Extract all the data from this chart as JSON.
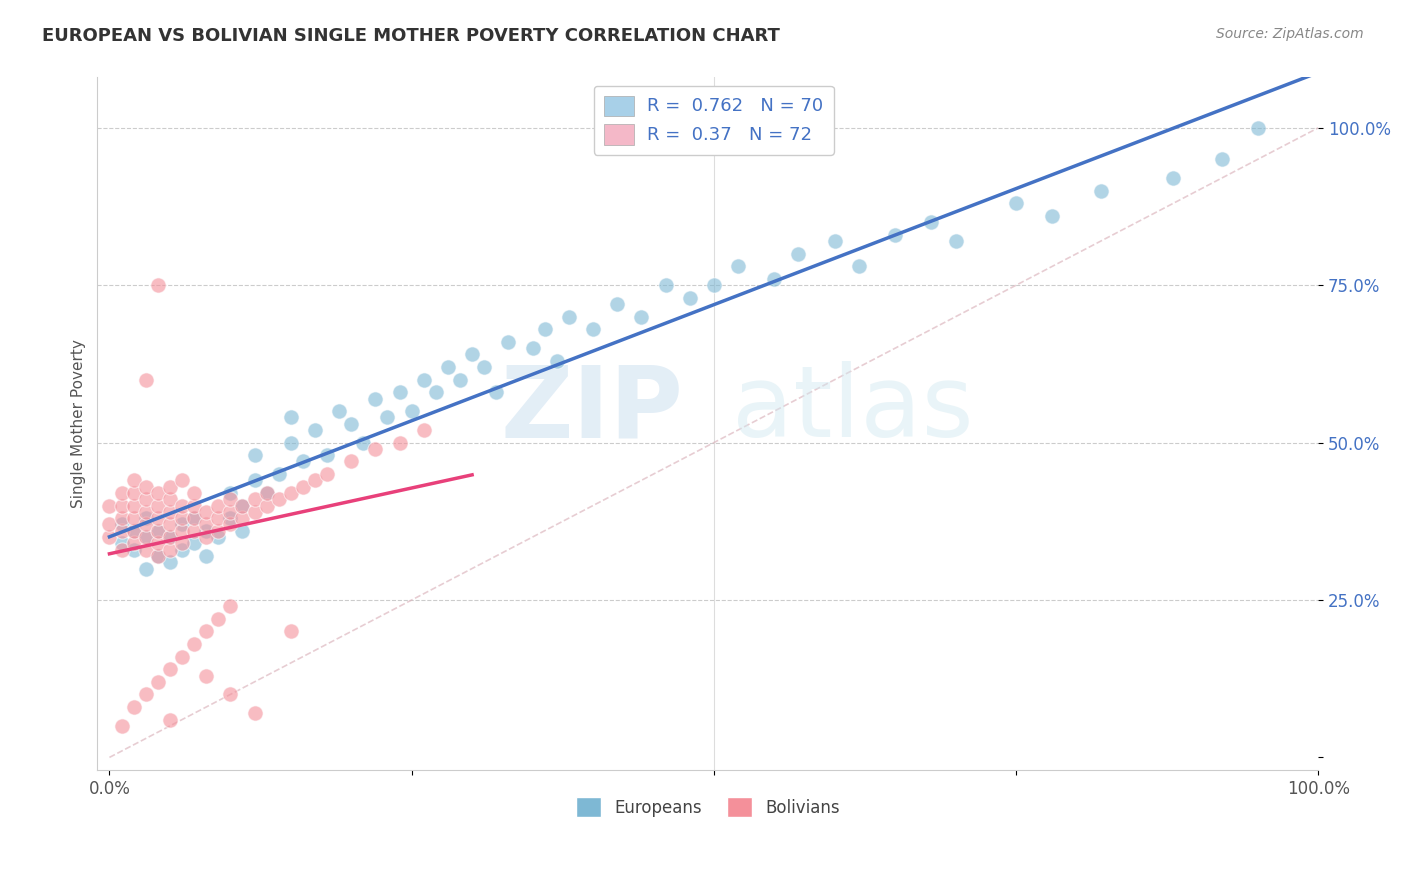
{
  "title": "EUROPEAN VS BOLIVIAN SINGLE MOTHER POVERTY CORRELATION CHART",
  "source_text": "Source: ZipAtlas.com",
  "ylabel": "Single Mother Poverty",
  "european_color": "#7eb8d4",
  "bolivian_color": "#f4909a",
  "european_R": 0.762,
  "european_N": 70,
  "bolivian_R": 0.37,
  "bolivian_N": 72,
  "legend_label_european": "Europeans",
  "legend_label_bolivian": "Bolivians",
  "watermark_zip": "ZIP",
  "watermark_atlas": "atlas",
  "legend_blue_patch": "#a8d0e8",
  "legend_pink_patch": "#f4b8c8",
  "ytick_color": "#4472c4",
  "title_color": "#333333",
  "source_color": "#888888",
  "grid_color": "#cccccc",
  "ref_line_color": "#f4b8c8",
  "euro_reg_color": "#4472c4",
  "boli_reg_color": "#e8407a"
}
